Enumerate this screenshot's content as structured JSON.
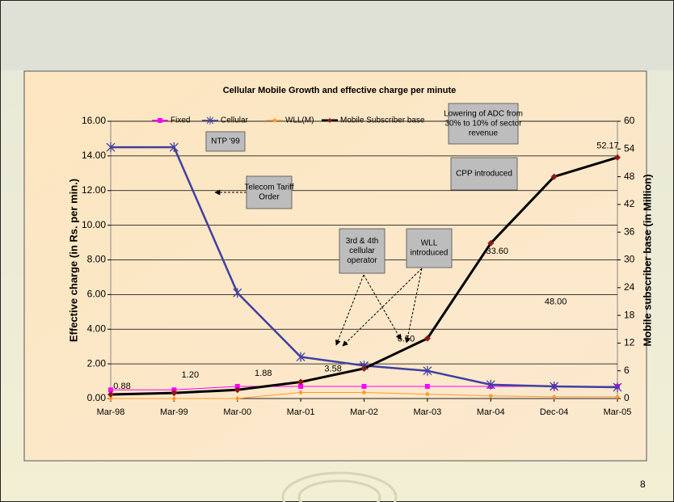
{
  "chart_data": {
    "type": "line",
    "title": "Cellular Mobile Growth and effective charge per minute",
    "ylabel": "Effective charge (in Rs. per min.)",
    "y2label": "Mobile subscriber base (in Million)",
    "categories": [
      "Mar-98",
      "Mar-99",
      "Mar-00",
      "Mar-01",
      "Mar-02",
      "Mar-03",
      "Mar-04",
      "Dec-04",
      "Mar-05"
    ],
    "series": [
      {
        "name": "Fixed",
        "color": "#ff00ff",
        "marker": "square",
        "values": [
          0.5,
          0.5,
          0.7,
          0.7,
          0.7,
          0.7,
          0.7,
          0.7,
          0.7
        ]
      },
      {
        "name": "Cellular",
        "color": "#4040a0",
        "marker": "asterisk",
        "values": [
          14.5,
          14.5,
          6.1,
          2.4,
          1.9,
          1.6,
          0.8,
          0.7,
          0.65
        ]
      },
      {
        "name": "WLL(M)",
        "color": "#ff9933",
        "marker": "diamond",
        "values": [
          0,
          0,
          0,
          0.35,
          0.35,
          0.25,
          0.15,
          0.1,
          0.1
        ]
      },
      {
        "name": "Mobile Subscriber base",
        "color": "#000000",
        "marker_color": "#8b1a1a",
        "marker": "diamond",
        "axis": "y2",
        "values": [
          0.88,
          1.2,
          1.88,
          3.58,
          6.5,
          13,
          33.6,
          48,
          52.17
        ],
        "value_labels": [
          "0.88",
          "1.20",
          "1.88",
          "3.58",
          "6.50",
          null,
          "33.60",
          "48.00",
          "52.17"
        ]
      }
    ],
    "ylim": [
      0,
      16
    ],
    "yticks": [
      {
        "value": 0,
        "label": "0.00"
      },
      {
        "value": 2,
        "label": "2.00"
      },
      {
        "value": 4,
        "label": "4.00"
      },
      {
        "value": 6,
        "label": "6.00"
      },
      {
        "value": 8,
        "label": "8.00"
      },
      {
        "value": 10,
        "label": "10.00"
      },
      {
        "value": 12,
        "label": "12.00"
      },
      {
        "value": 14,
        "label": "14.00"
      },
      {
        "value": 16,
        "label": "16.00"
      }
    ],
    "y2lim": [
      0,
      60
    ],
    "y2ticks": [
      0,
      6,
      12,
      18,
      24,
      30,
      36,
      42,
      48,
      54,
      60
    ],
    "grid": true,
    "legend": "top",
    "annotations": [
      {
        "lines": [
          "NTP '99"
        ]
      },
      {
        "lines": [
          "Telecom Tariff",
          "Order"
        ]
      },
      {
        "lines": [
          "3rd & 4th",
          "cellular",
          "operator"
        ]
      },
      {
        "lines": [
          "WLL",
          "introduced"
        ]
      },
      {
        "lines": [
          "Lowering of ADC from",
          "30% to 10% of sector",
          "revenue"
        ]
      },
      {
        "lines": [
          "CPP introduced"
        ]
      }
    ]
  },
  "page_number": "8"
}
